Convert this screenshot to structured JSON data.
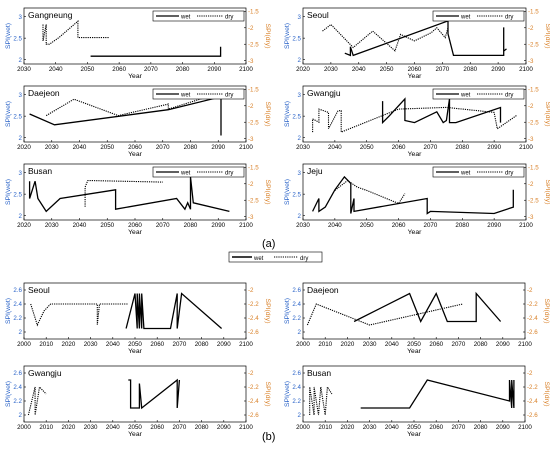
{
  "figure": {
    "part_a_label": "(a)",
    "part_b_label": "(b)",
    "shared_legend": {
      "wet": "wet",
      "dry": "dry"
    }
  },
  "chart_data": [
    {
      "type": "line",
      "panel_id": "a1",
      "title": "Gangneung",
      "xlabel": "Year",
      "ylabel_left": "SPI(wet)",
      "ylabel_right": "SPI(dry)",
      "xlim": [
        2030,
        2100
      ],
      "xticks": [
        2030,
        2040,
        2050,
        2060,
        2070,
        2080,
        2090,
        2100
      ],
      "ylim_left": [
        1.9,
        3.2
      ],
      "yticks_left": [
        2,
        2.5,
        3
      ],
      "ylim_right": [
        -3.1,
        -1.4
      ],
      "yticks_right": [
        -1.5,
        -2,
        -2.5,
        -3
      ],
      "legend": {
        "entries": [
          "wet",
          "dry"
        ],
        "position": "top-right"
      },
      "series": [
        {
          "name": "wet",
          "axis": "left",
          "style": "solid",
          "x": [
            2051,
            2092,
            2092,
            2092
          ],
          "y": [
            2.08,
            2.08,
            2.22,
            2.3
          ]
        },
        {
          "name": "dry",
          "axis": "right",
          "style": "dotted",
          "x": [
            2036,
            2036,
            2037,
            2037,
            2038,
            2041,
            2047,
            2047,
            2052,
            2057
          ],
          "y": [
            -1.9,
            -2.4,
            -1.9,
            -2.5,
            -2.5,
            -2.3,
            -1.8,
            -2.3,
            -2.3,
            -2.3
          ]
        }
      ]
    },
    {
      "type": "line",
      "panel_id": "a2",
      "title": "Seoul",
      "xlabel": "Year",
      "ylabel_left": "SPI(wet)",
      "ylabel_right": "SPI(dry)",
      "xlim": [
        2020,
        2100
      ],
      "xticks": [
        2020,
        2030,
        2040,
        2050,
        2060,
        2070,
        2080,
        2090,
        2100
      ],
      "ylim_left": [
        1.9,
        3.2
      ],
      "yticks_left": [
        2,
        2.5,
        3
      ],
      "ylim_right": [
        -3.1,
        -1.4
      ],
      "yticks_right": [
        -1.5,
        -2,
        -2.5,
        -3
      ],
      "legend": {
        "entries": [
          "wet",
          "dry"
        ],
        "position": "top-right"
      },
      "series": [
        {
          "name": "wet",
          "axis": "left",
          "style": "solid",
          "x": [
            2035,
            2037,
            2037,
            2038,
            2072,
            2072,
            2074,
            2092,
            2092,
            2092,
            2093
          ],
          "y": [
            2.15,
            2.1,
            2.3,
            2.1,
            2.9,
            2.6,
            2.1,
            2.1,
            2.75,
            2.2,
            2.25
          ]
        },
        {
          "name": "dry",
          "axis": "right",
          "style": "dotted",
          "x": [
            2027,
            2030,
            2038,
            2045,
            2053,
            2055,
            2060,
            2066,
            2068,
            2071,
            2072
          ],
          "y": [
            -2.1,
            -1.9,
            -2.6,
            -2.1,
            -2.7,
            -2.2,
            -2.4,
            -2.15,
            -2.0,
            -2.3,
            -2.0
          ]
        }
      ]
    },
    {
      "type": "line",
      "panel_id": "a3",
      "title": "Daejeon",
      "xlabel": "Year",
      "ylabel_left": "SPI(wet)",
      "ylabel_right": "SPI(dry)",
      "xlim": [
        2020,
        2100
      ],
      "xticks": [
        2020,
        2030,
        2040,
        2050,
        2060,
        2070,
        2080,
        2090,
        2100
      ],
      "ylim_left": [
        1.9,
        3.2
      ],
      "yticks_left": [
        2,
        2.5,
        3
      ],
      "ylim_right": [
        -3.1,
        -1.4
      ],
      "yticks_right": [
        -1.5,
        -2,
        -2.5,
        -3
      ],
      "legend": {
        "entries": [
          "wet",
          "dry"
        ],
        "position": "top-right"
      },
      "series": [
        {
          "name": "wet",
          "axis": "left",
          "style": "solid",
          "x": [
            2022,
            2031,
            2072,
            2091,
            2091
          ],
          "y": [
            2.55,
            2.3,
            2.65,
            2.95,
            2.05
          ]
        },
        {
          "name": "dry",
          "axis": "right",
          "style": "dotted",
          "x": [
            2028,
            2038,
            2054,
            2072,
            2072,
            2091
          ],
          "y": [
            -2.3,
            -1.8,
            -2.3,
            -1.95,
            -2.1,
            -1.6
          ]
        }
      ]
    },
    {
      "type": "line",
      "panel_id": "a4",
      "title": "Gwangju",
      "xlabel": "Year",
      "ylabel_left": "SPI(wet)",
      "ylabel_right": "SPI(dry)",
      "xlim": [
        2030,
        2100
      ],
      "xticks": [
        2030,
        2040,
        2050,
        2060,
        2070,
        2080,
        2090,
        2100
      ],
      "ylim_left": [
        1.9,
        3.2
      ],
      "yticks_left": [
        2,
        2.5,
        3
      ],
      "ylim_right": [
        -3.1,
        -1.4
      ],
      "yticks_right": [
        -1.5,
        -2,
        -2.5,
        -3
      ],
      "legend": {
        "entries": [
          "wet",
          "dry"
        ],
        "position": "top-right"
      },
      "series": [
        {
          "name": "wet",
          "axis": "left",
          "style": "solid",
          "x": [
            2055,
            2055,
            2057,
            2062,
            2062,
            2065,
            2072,
            2074,
            2075,
            2076,
            2076,
            2078,
            2092,
            2092
          ],
          "y": [
            2.85,
            2.35,
            2.5,
            2.9,
            2.4,
            2.35,
            2.6,
            2.35,
            2.4,
            2.9,
            2.35,
            2.35,
            2.7,
            2.35
          ]
        },
        {
          "name": "dry",
          "axis": "right",
          "style": "dotted",
          "x": [
            2033,
            2033,
            2035,
            2035,
            2038,
            2038,
            2041,
            2042,
            2042,
            2060,
            2075,
            2090,
            2091,
            2097
          ],
          "y": [
            -2.8,
            -2.4,
            -2.5,
            -2.1,
            -2.2,
            -2.7,
            -2.15,
            -2.15,
            -2.8,
            -2.1,
            -2.05,
            -2.2,
            -2.7,
            -2.3
          ]
        }
      ]
    },
    {
      "type": "line",
      "panel_id": "a5",
      "title": "Busan",
      "xlabel": "Year",
      "ylabel_left": "SPI(wet)",
      "ylabel_right": "SPI(dry)",
      "xlim": [
        2020,
        2100
      ],
      "xticks": [
        2020,
        2030,
        2040,
        2050,
        2060,
        2070,
        2080,
        2090,
        2100
      ],
      "ylim_left": [
        1.9,
        3.2
      ],
      "yticks_left": [
        2,
        2.5,
        3
      ],
      "ylim_right": [
        -3.1,
        -1.4
      ],
      "yticks_right": [
        -1.5,
        -2,
        -2.5,
        -3
      ],
      "legend": {
        "entries": [
          "wet",
          "dry"
        ],
        "position": "top-right"
      },
      "series": [
        {
          "name": "wet",
          "axis": "left",
          "style": "solid",
          "x": [
            2022,
            2022,
            2024,
            2025,
            2028,
            2033,
            2053,
            2053,
            2075,
            2078,
            2079,
            2080,
            2080,
            2081,
            2094
          ],
          "y": [
            2.8,
            2.4,
            2.8,
            2.4,
            2.1,
            2.4,
            2.6,
            2.15,
            2.4,
            2.15,
            2.3,
            2.15,
            2.9,
            2.3,
            2.1
          ]
        },
        {
          "name": "dry",
          "axis": "right",
          "style": "dotted",
          "x": [
            2042,
            2042,
            2043,
            2070
          ],
          "y": [
            -2.7,
            -2.1,
            -1.9,
            -1.95
          ]
        }
      ]
    },
    {
      "type": "line",
      "panel_id": "a6",
      "title": "Jeju",
      "xlabel": "Year",
      "ylabel_left": "SPI(wet)",
      "ylabel_right": "SPI(dry)",
      "xlim": [
        2030,
        2100
      ],
      "xticks": [
        2030,
        2040,
        2050,
        2060,
        2070,
        2080,
        2090,
        2100
      ],
      "ylim_left": [
        1.9,
        3.2
      ],
      "yticks_left": [
        2,
        2.5,
        3
      ],
      "ylim_right": [
        -3.1,
        -1.4
      ],
      "yticks_right": [
        -1.5,
        -2,
        -2.5,
        -3
      ],
      "legend": {
        "entries": [
          "wet",
          "dry"
        ],
        "position": "top-right"
      },
      "series": [
        {
          "name": "wet",
          "axis": "left",
          "style": "solid",
          "x": [
            2033,
            2035,
            2035,
            2037,
            2040,
            2043,
            2045,
            2045,
            2046,
            2046,
            2069,
            2069,
            2070,
            2090,
            2096,
            2096
          ],
          "y": [
            2.1,
            2.4,
            2.1,
            2.2,
            2.6,
            2.9,
            2.75,
            2.05,
            2.4,
            2.1,
            2.4,
            2.05,
            2.1,
            2.05,
            2.2,
            2.6
          ]
        },
        {
          "name": "dry",
          "axis": "right",
          "style": "dotted",
          "x": [
            2040,
            2044,
            2047,
            2050,
            2060,
            2062
          ],
          "y": [
            -2.2,
            -1.9,
            -2.1,
            -2.2,
            -2.6,
            -2.3
          ]
        }
      ]
    },
    {
      "type": "line",
      "panel_id": "b1",
      "title": "Seoul",
      "xlabel": "Year",
      "ylabel_left": "SPI(wet)",
      "ylabel_right": "SPI(dry)",
      "xlim": [
        2000,
        2100
      ],
      "xticks": [
        2000,
        2010,
        2020,
        2030,
        2040,
        2050,
        2060,
        2070,
        2080,
        2090,
        2100
      ],
      "ylim_left": [
        1.9,
        2.7
      ],
      "yticks_left": [
        2,
        2.2,
        2.4,
        2.6
      ],
      "ylim_right": [
        -2.7,
        -1.9
      ],
      "yticks_right": [
        -2,
        -2.2,
        -2.4,
        -2.6
      ],
      "series": [
        {
          "name": "wet",
          "axis": "left",
          "style": "solid",
          "x": [
            2046,
            2050,
            2051,
            2051,
            2052,
            2052,
            2053,
            2053,
            2054,
            2066,
            2069,
            2069,
            2071,
            2089
          ],
          "y": [
            2.05,
            2.55,
            2.05,
            2.55,
            2.05,
            2.55,
            2.05,
            2.55,
            2.05,
            2.05,
            2.55,
            2.05,
            2.55,
            2.05
          ]
        },
        {
          "name": "dry",
          "axis": "right",
          "style": "dotted",
          "x": [
            2003,
            2006,
            2009,
            2012,
            2033,
            2033,
            2034,
            2047
          ],
          "y": [
            -2.2,
            -2.5,
            -2.3,
            -2.2,
            -2.2,
            -2.5,
            -2.2,
            -2.2
          ]
        }
      ]
    },
    {
      "type": "line",
      "panel_id": "b2",
      "title": "Daejeon",
      "xlabel": "Year",
      "ylabel_left": "SPI(wet)",
      "ylabel_right": "SPI(dry)",
      "xlim": [
        2000,
        2100
      ],
      "xticks": [
        2000,
        2010,
        2020,
        2030,
        2040,
        2050,
        2060,
        2070,
        2080,
        2090,
        2100
      ],
      "ylim_left": [
        1.9,
        2.7
      ],
      "yticks_left": [
        2,
        2.2,
        2.4,
        2.6
      ],
      "ylim_right": [
        -2.7,
        -1.9
      ],
      "yticks_right": [
        -2,
        -2.2,
        -2.4,
        -2.6
      ],
      "series": [
        {
          "name": "wet",
          "axis": "left",
          "style": "solid",
          "x": [
            2023,
            2048,
            2053,
            2060,
            2065,
            2078,
            2078,
            2089
          ],
          "y": [
            2.15,
            2.55,
            2.15,
            2.55,
            2.15,
            2.15,
            2.55,
            2.15
          ]
        },
        {
          "name": "dry",
          "axis": "right",
          "style": "dotted",
          "x": [
            2002,
            2006,
            2030,
            2072
          ],
          "y": [
            -2.5,
            -2.2,
            -2.5,
            -2.2
          ]
        }
      ]
    },
    {
      "type": "line",
      "panel_id": "b3",
      "title": "Gwangju",
      "xlabel": "Year",
      "ylabel_left": "SPI(wet)",
      "ylabel_right": "SPI(dry)",
      "xlim": [
        2000,
        2100
      ],
      "xticks": [
        2000,
        2010,
        2020,
        2030,
        2040,
        2050,
        2060,
        2070,
        2080,
        2090,
        2100
      ],
      "ylim_left": [
        1.9,
        2.7
      ],
      "yticks_left": [
        2,
        2.2,
        2.4,
        2.6
      ],
      "ylim_right": [
        -2.7,
        -1.9
      ],
      "yticks_right": [
        -2,
        -2.2,
        -2.4,
        -2.6
      ],
      "series": [
        {
          "name": "wet",
          "axis": "left",
          "style": "solid",
          "x": [
            2047,
            2048,
            2048,
            2052,
            2052,
            2053,
            2069,
            2069,
            2070
          ],
          "y": [
            2.5,
            2.5,
            2.1,
            2.1,
            2.45,
            2.1,
            2.5,
            2.1,
            2.5
          ]
        },
        {
          "name": "dry",
          "axis": "right",
          "style": "dotted",
          "x": [
            2002,
            2005,
            2005,
            2007,
            2010
          ],
          "y": [
            -2.6,
            -2.2,
            -2.6,
            -2.2,
            -2.3
          ]
        }
      ]
    },
    {
      "type": "line",
      "panel_id": "b4",
      "title": "Busan",
      "xlabel": "Year",
      "ylabel_left": "SPI(wet)",
      "ylabel_right": "SPI(dry)",
      "xlim": [
        2000,
        2100
      ],
      "xticks": [
        2000,
        2010,
        2020,
        2030,
        2040,
        2050,
        2060,
        2070,
        2080,
        2090,
        2100
      ],
      "ylim_left": [
        1.9,
        2.7
      ],
      "yticks_left": [
        2,
        2.2,
        2.4,
        2.6
      ],
      "ylim_right": [
        -2.7,
        -1.9
      ],
      "yticks_right": [
        -2,
        -2.2,
        -2.4,
        -2.6
      ],
      "series": [
        {
          "name": "wet",
          "axis": "left",
          "style": "solid",
          "x": [
            2026,
            2048,
            2056,
            2093,
            2093,
            2094,
            2094,
            2095,
            2095
          ],
          "y": [
            2.1,
            2.1,
            2.5,
            2.2,
            2.5,
            2.1,
            2.5,
            2.1,
            2.5
          ]
        },
        {
          "name": "dry",
          "axis": "right",
          "style": "dotted",
          "x": [
            2003,
            2003,
            2005,
            2005,
            2007,
            2008,
            2010,
            2011,
            2013
          ],
          "y": [
            -2.6,
            -2.2,
            -2.6,
            -2.2,
            -2.6,
            -2.2,
            -2.6,
            -2.2,
            -2.3
          ]
        }
      ]
    }
  ]
}
